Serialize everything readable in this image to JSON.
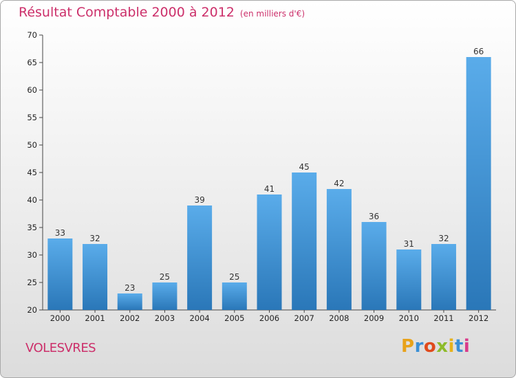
{
  "chart_data": {
    "type": "bar",
    "title": "Résultat Comptable 2000 à 2012",
    "subtitle": "(en milliers d'€)",
    "xlabel": "",
    "ylabel": "",
    "categories": [
      "2000",
      "2001",
      "2002",
      "2003",
      "2004",
      "2005",
      "2006",
      "2007",
      "2008",
      "2009",
      "2010",
      "2011",
      "2012"
    ],
    "values": [
      33,
      32,
      23,
      25,
      39,
      25,
      41,
      45,
      42,
      36,
      31,
      32,
      66
    ],
    "ylim": [
      20,
      70
    ],
    "yticks": [
      20,
      25,
      30,
      35,
      40,
      45,
      50,
      55,
      60,
      65,
      70
    ],
    "grid": false,
    "bar_color_top": "#5aacea",
    "bar_color_bottom": "#2a77b8"
  },
  "commune": "VOLESVRES",
  "logo": {
    "text": "Proxiti",
    "letters": [
      {
        "ch": "P",
        "color": "#e8a21a"
      },
      {
        "ch": "r",
        "color": "#3a8fd6"
      },
      {
        "ch": "o",
        "color": "#e04a1c"
      },
      {
        "ch": "x",
        "color": "#8dbb2a"
      },
      {
        "ch": "i",
        "color": "#e6b21c"
      },
      {
        "ch": "t",
        "color": "#3a8fd6"
      },
      {
        "ch": "i",
        "color": "#d93a8a"
      }
    ]
  }
}
